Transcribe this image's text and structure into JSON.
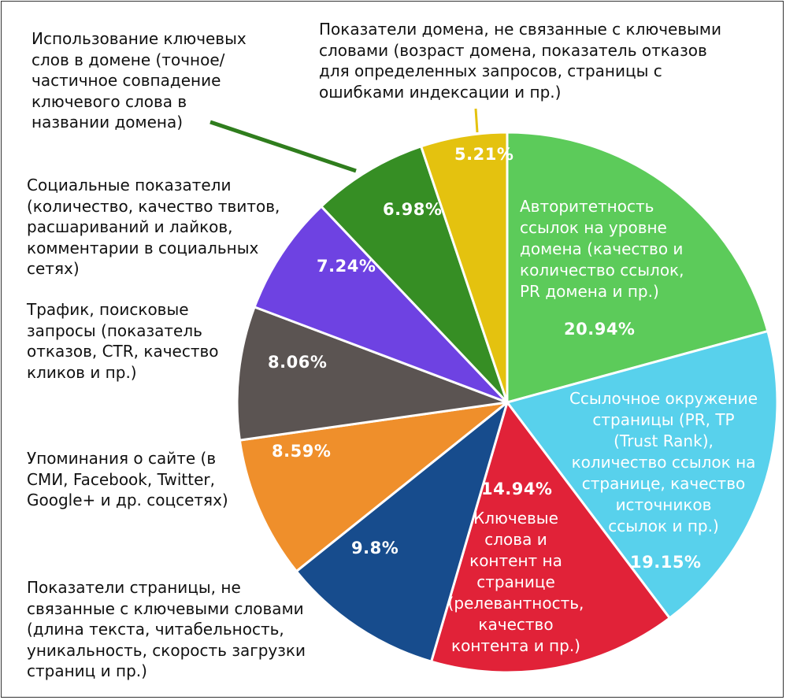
{
  "chart_data": {
    "type": "pie",
    "start_angle_deg": 0,
    "direction": "clockwise",
    "slices": [
      {
        "value": 20.94,
        "value_label": "20.94%",
        "color": "#5ccb5a",
        "label": "Авторитетность\nссылок на уровне\nдомена (качество и\nколичество ссылок,\nPR домена и пр.)"
      },
      {
        "value": 19.15,
        "value_label": "19.15%",
        "color": "#58d1ec",
        "label": "Ссылочное окружение\nстраницы (PR, TP\n(Trust Rank),\nколичество ссылок на\nстранице, качество\nисточников\nссылок и пр.)"
      },
      {
        "value": 14.94,
        "value_label": "14.94%",
        "color": "#e12238",
        "label": "Ключевые\nслова и\nконтент на\nстранице\n(релевантность,\nкачество\nконтента и пр.)"
      },
      {
        "value": 9.8,
        "value_label": "9.8%",
        "color": "#174c8d",
        "label": "Показатели страницы, не\nсвязанные с ключевыми словами\n(длина текста, читабельность,\nуникальность, скорость загрузки\nстраниц и пр.)"
      },
      {
        "value": 8.59,
        "value_label": "8.59%",
        "color": "#ef8f2b",
        "label": "Упоминания о сайте (в\nСМИ, Facebook, Twitter,\nGoogle+ и др. соцсетях)"
      },
      {
        "value": 8.06,
        "value_label": "8.06%",
        "color": "#5b5452",
        "label": "Трафик, поисковые\nзапросы (показатель\nотказов, CTR, качество\nкликов и пр.)"
      },
      {
        "value": 7.24,
        "value_label": "7.24%",
        "color": "#6e42e2",
        "label": "Социальные показатели\n(количество, качество твитов,\nрасшариваний и лайков,\nкомментарии в социальных\nсетях)"
      },
      {
        "value": 6.98,
        "value_label": "6.98%",
        "color": "#368e24",
        "label": "Использование ключевых\nслов в домене (точное/\nчастичное совпадение\nключевого слова в\nназвании домена)"
      },
      {
        "value": 5.21,
        "value_label": "5.21%",
        "color": "#e4c20f",
        "label": "Показатели домена, не связанные с ключевыми\nсловами (возраст домена,  показатель отказов\nдля определенных запросов, страницы с\nошибками индексации и пр.)"
      }
    ]
  }
}
